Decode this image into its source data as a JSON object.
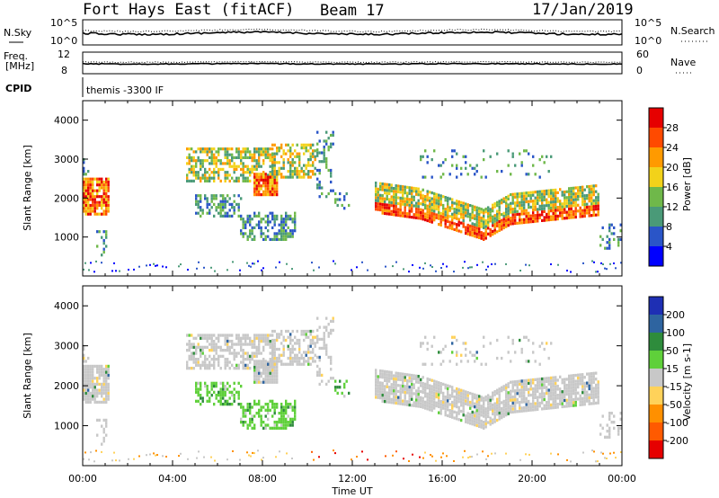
{
  "header": {
    "title": "Fort Hays East (fitACF)",
    "beam": "Beam 17",
    "date": "17/Jan/2019"
  },
  "strip_panels": {
    "nsky_label": "N.Sky",
    "nsky_ticks": [
      "10^5",
      "10^0"
    ],
    "nsearch_label": "N.Search",
    "nsearch_ticks": [
      "10^5",
      "10^0"
    ],
    "freq_label": "Freq.",
    "freq_unit": "[MHz]",
    "freq_ticks": [
      "12",
      "8"
    ],
    "nave_label": "Nave",
    "nave_ticks": [
      "60",
      "0"
    ],
    "cpid_label": "CPID",
    "cpid_text": "themis -3300 IF"
  },
  "chart_data": [
    {
      "type": "heatmap",
      "name": "power",
      "ylabel": "Slant Range [km]",
      "ylim": [
        0,
        4500
      ],
      "y_ticks": [
        "1000",
        "2000",
        "3000",
        "4000"
      ],
      "x_ticks": [
        "00:00",
        "04:00",
        "08:00",
        "12:00",
        "16:00",
        "20:00",
        "00:00"
      ],
      "xlim_hours": [
        0,
        24
      ],
      "colorbar": {
        "label": "Power [dB]",
        "ticks": [
          "4",
          "8",
          "12",
          "16",
          "20",
          "24",
          "28"
        ],
        "colors": [
          "#0000ff",
          "#2a55c8",
          "#4a9a78",
          "#6fb84a",
          "#f2d21a",
          "#ff9a00",
          "#ff4a00",
          "#e60000"
        ]
      }
    },
    {
      "type": "heatmap",
      "name": "velocity",
      "ylabel": "Slant Range [km]",
      "ylim": [
        0,
        4500
      ],
      "y_ticks": [
        "1000",
        "2000",
        "3000",
        "4000"
      ],
      "x_ticks": [
        "00:00",
        "04:00",
        "08:00",
        "12:00",
        "16:00",
        "20:00",
        "00:00"
      ],
      "xlabel": "Time UT",
      "colorbar": {
        "label": "Velocity [m s-1]",
        "ticks": [
          "200",
          "100",
          "50",
          "15",
          "-15",
          "-50",
          "-100",
          "-200"
        ],
        "colors": [
          "#1e2fb4",
          "#2e64a0",
          "#2e8c3c",
          "#5fd03a",
          "#c8c8c8",
          "#ffd25a",
          "#ff9000",
          "#ff5a00",
          "#e60000"
        ]
      }
    }
  ]
}
